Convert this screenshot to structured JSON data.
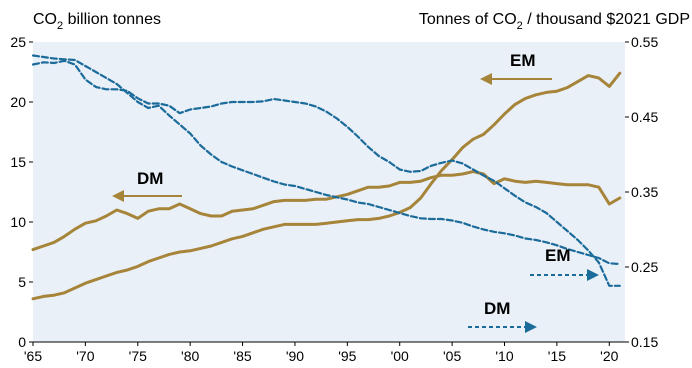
{
  "chart_data": {
    "type": "line",
    "left_axis_title": "CO",
    "left_axis_sub": "2",
    "left_axis_rest": " billion tonnes",
    "right_axis_title": "Tonnes of CO",
    "right_axis_sub": "2",
    "right_axis_rest": " / thousand $2021 GDP",
    "x_ticks": [
      "'65",
      "'70",
      "'75",
      "'80",
      "'85",
      "'90",
      "'95",
      "'00",
      "'05",
      "'10",
      "'15",
      "'20"
    ],
    "x_tick_values": [
      1965,
      1970,
      1975,
      1980,
      1985,
      1990,
      1995,
      2000,
      2005,
      2010,
      2015,
      2020
    ],
    "xlim": [
      1965,
      2021.5
    ],
    "left_ylim": [
      0,
      25
    ],
    "left_ticks": [
      "0",
      "5",
      "10",
      "15",
      "20",
      "25"
    ],
    "left_tick_values": [
      0,
      5,
      10,
      15,
      20,
      25
    ],
    "right_ylim": [
      0.15,
      0.55
    ],
    "right_ticks": [
      "0.15",
      "0.25",
      "0.35",
      "0.45",
      "0.55"
    ],
    "right_tick_values": [
      0.15,
      0.25,
      0.35,
      0.45,
      0.55
    ],
    "colors": {
      "emissions": "#a6843a",
      "intensity": "#1b6b9b"
    },
    "series": [
      {
        "axis": "left",
        "style": "solid",
        "x": [
          1965,
          1966,
          1967,
          1968,
          1969,
          1970,
          1971,
          1972,
          1973,
          1974,
          1975,
          1976,
          1977,
          1978,
          1979,
          1980,
          1981,
          1982,
          1983,
          1984,
          1985,
          1986,
          1987,
          1988,
          1989,
          1990,
          1991,
          1992,
          1993,
          1994,
          1995,
          1996,
          1997,
          1998,
          1999,
          2000,
          2001,
          2002,
          2003,
          2004,
          2005,
          2006,
          2007,
          2008,
          2009,
          2010,
          2011,
          2012,
          2013,
          2014,
          2015,
          2016,
          2017,
          2018,
          2019,
          2020,
          2021
        ],
        "values": [
          7.7,
          8.0,
          8.3,
          8.8,
          9.4,
          9.9,
          10.1,
          10.5,
          11.0,
          10.7,
          10.3,
          10.9,
          11.1,
          11.1,
          11.5,
          11.1,
          10.7,
          10.5,
          10.5,
          10.9,
          11.0,
          11.1,
          11.4,
          11.7,
          11.8,
          11.8,
          11.8,
          11.9,
          11.9,
          12.1,
          12.3,
          12.6,
          12.9,
          12.9,
          13.0,
          13.3,
          13.3,
          13.4,
          13.7,
          13.9,
          13.9,
          14.0,
          14.2,
          14.0,
          13.2,
          13.6,
          13.4,
          13.3,
          13.4,
          13.3,
          13.2,
          13.1,
          13.1,
          13.1,
          12.9,
          11.5,
          12.0
        ]
      },
      {
        "axis": "left",
        "style": "solid",
        "x": [
          1965,
          1966,
          1967,
          1968,
          1969,
          1970,
          1971,
          1972,
          1973,
          1974,
          1975,
          1976,
          1977,
          1978,
          1979,
          1980,
          1981,
          1982,
          1983,
          1984,
          1985,
          1986,
          1987,
          1988,
          1989,
          1990,
          1991,
          1992,
          1993,
          1994,
          1995,
          1996,
          1997,
          1998,
          1999,
          2000,
          2001,
          2002,
          2003,
          2004,
          2005,
          2006,
          2007,
          2008,
          2009,
          2010,
          2011,
          2012,
          2013,
          2014,
          2015,
          2016,
          2017,
          2018,
          2019,
          2020,
          2021
        ],
        "values": [
          3.6,
          3.8,
          3.9,
          4.1,
          4.5,
          4.9,
          5.2,
          5.5,
          5.8,
          6.0,
          6.3,
          6.7,
          7.0,
          7.3,
          7.5,
          7.6,
          7.8,
          8.0,
          8.3,
          8.6,
          8.8,
          9.1,
          9.4,
          9.6,
          9.8,
          9.8,
          9.8,
          9.8,
          9.9,
          10.0,
          10.1,
          10.2,
          10.2,
          10.3,
          10.5,
          10.8,
          11.2,
          12.0,
          13.2,
          14.3,
          15.2,
          16.2,
          16.9,
          17.3,
          18.1,
          19.0,
          19.8,
          20.3,
          20.6,
          20.8,
          20.9,
          21.2,
          21.7,
          22.2,
          22.0,
          21.3,
          22.4
        ]
      },
      {
        "axis": "right",
        "style": "dashed",
        "x": [
          1965,
          1966,
          1967,
          1968,
          1969,
          1970,
          1971,
          1972,
          1973,
          1974,
          1975,
          1976,
          1977,
          1978,
          1979,
          1980,
          1981,
          1982,
          1983,
          1984,
          1985,
          1986,
          1987,
          1988,
          1989,
          1990,
          1991,
          1992,
          1993,
          1994,
          1995,
          1996,
          1997,
          1998,
          1999,
          2000,
          2001,
          2002,
          2003,
          2004,
          2005,
          2006,
          2007,
          2008,
          2009,
          2010,
          2011,
          2012,
          2013,
          2014,
          2015,
          2016,
          2017,
          2018,
          2019,
          2020,
          2021
        ],
        "values": [
          0.532,
          0.53,
          0.528,
          0.527,
          0.526,
          0.518,
          0.51,
          0.502,
          0.494,
          0.482,
          0.47,
          0.462,
          0.465,
          0.452,
          0.44,
          0.428,
          0.412,
          0.4,
          0.39,
          0.384,
          0.379,
          0.374,
          0.369,
          0.364,
          0.36,
          0.358,
          0.354,
          0.35,
          0.346,
          0.343,
          0.34,
          0.336,
          0.334,
          0.33,
          0.326,
          0.322,
          0.318,
          0.315,
          0.314,
          0.314,
          0.312,
          0.309,
          0.304,
          0.3,
          0.297,
          0.295,
          0.292,
          0.288,
          0.286,
          0.283,
          0.279,
          0.274,
          0.27,
          0.266,
          0.262,
          0.255,
          0.254
        ]
      },
      {
        "axis": "right",
        "style": "dashed",
        "x": [
          1965,
          1966,
          1967,
          1968,
          1969,
          1970,
          1971,
          1972,
          1973,
          1974,
          1975,
          1976,
          1977,
          1978,
          1979,
          1980,
          1981,
          1982,
          1983,
          1984,
          1985,
          1986,
          1987,
          1988,
          1989,
          1990,
          1991,
          1992,
          1993,
          1994,
          1995,
          1996,
          1997,
          1998,
          1999,
          2000,
          2001,
          2002,
          2003,
          2004,
          2005,
          2006,
          2007,
          2008,
          2009,
          2010,
          2011,
          2012,
          2013,
          2014,
          2015,
          2016,
          2017,
          2018,
          2019,
          2020,
          2021
        ],
        "values": [
          0.52,
          0.523,
          0.522,
          0.525,
          0.52,
          0.5,
          0.49,
          0.487,
          0.487,
          0.485,
          0.475,
          0.468,
          0.468,
          0.465,
          0.455,
          0.46,
          0.462,
          0.464,
          0.468,
          0.47,
          0.47,
          0.47,
          0.471,
          0.474,
          0.472,
          0.47,
          0.468,
          0.464,
          0.457,
          0.448,
          0.437,
          0.424,
          0.41,
          0.398,
          0.39,
          0.38,
          0.377,
          0.378,
          0.385,
          0.389,
          0.392,
          0.388,
          0.38,
          0.372,
          0.365,
          0.355,
          0.345,
          0.336,
          0.33,
          0.322,
          0.31,
          0.298,
          0.286,
          0.272,
          0.256,
          0.225,
          0.225
        ]
      }
    ],
    "labels": [
      {
        "text": "EM",
        "color": "emissions",
        "arrow": "left",
        "style": "solid"
      },
      {
        "text": "DM",
        "color": "emissions",
        "arrow": "left",
        "style": "solid"
      },
      {
        "text": "EM",
        "color": "intensity",
        "arrow": "right",
        "style": "dashed"
      },
      {
        "text": "DM",
        "color": "intensity",
        "arrow": "right",
        "style": "dashed"
      }
    ]
  }
}
